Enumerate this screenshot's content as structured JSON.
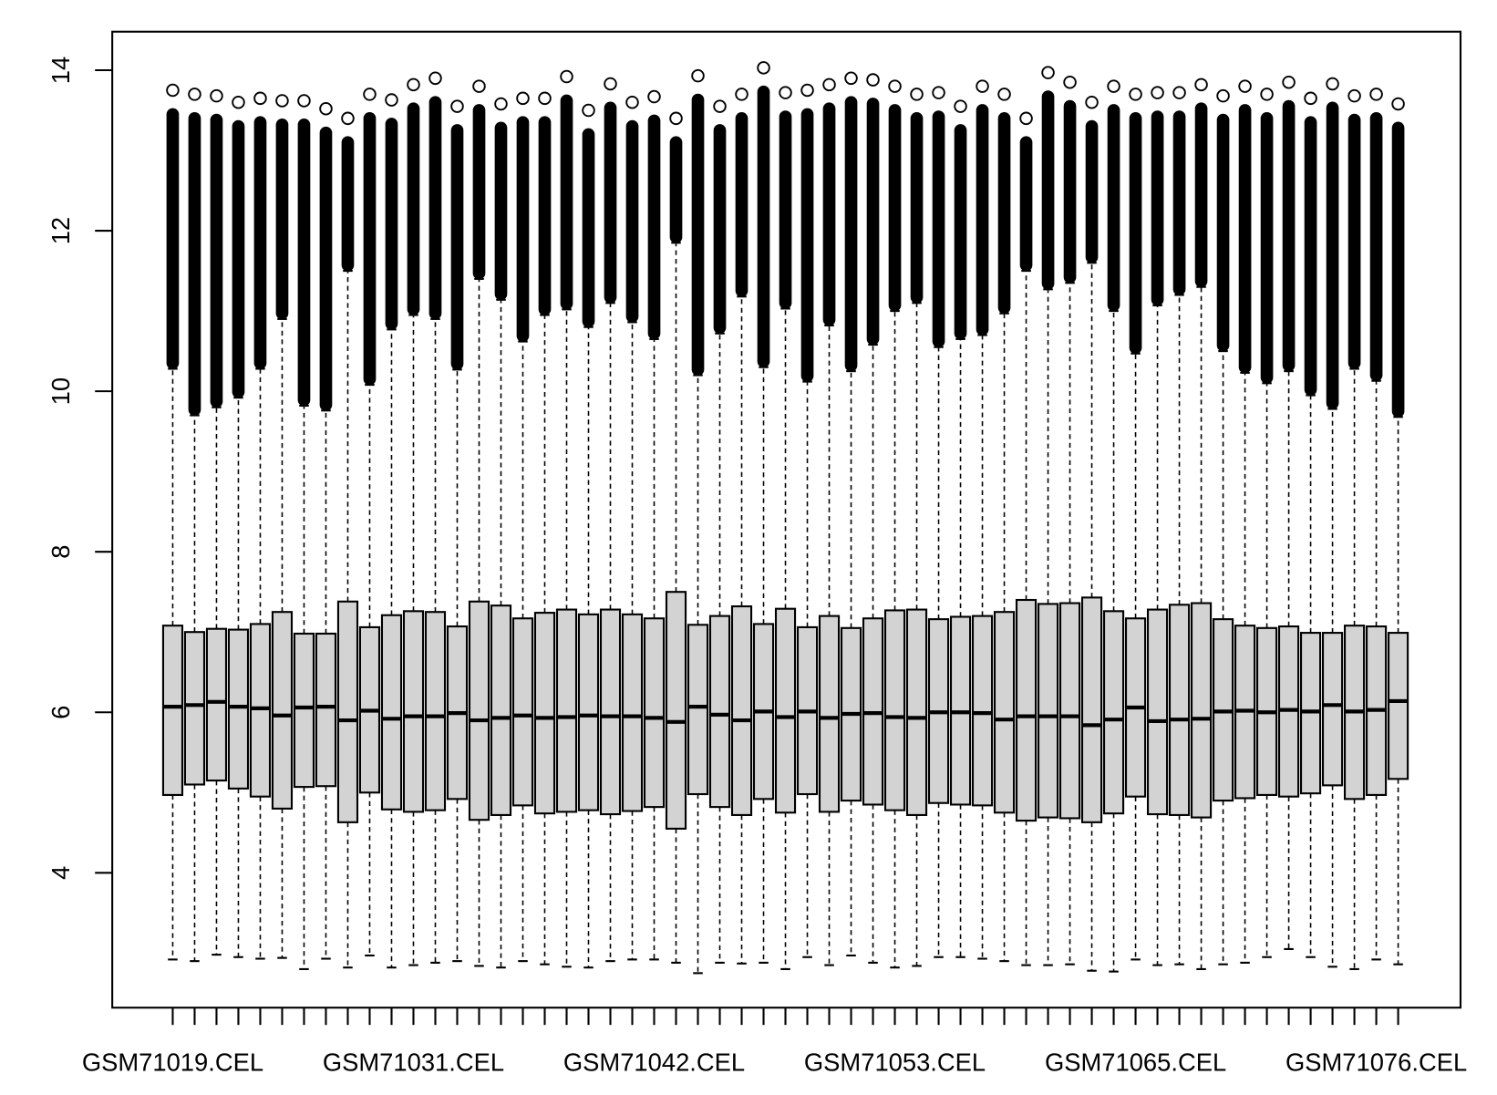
{
  "chart_data": {
    "type": "boxplot",
    "categories": [
      "GSM71019.CEL",
      null,
      null,
      null,
      null,
      null,
      null,
      null,
      null,
      null,
      null,
      "GSM71031.CEL",
      null,
      null,
      null,
      null,
      null,
      null,
      null,
      null,
      null,
      null,
      "GSM71042.CEL",
      null,
      null,
      null,
      null,
      null,
      null,
      null,
      null,
      null,
      null,
      "GSM71053.CEL",
      null,
      null,
      null,
      null,
      null,
      null,
      null,
      null,
      null,
      null,
      "GSM71065.CEL",
      null,
      null,
      null,
      null,
      null,
      null,
      null,
      null,
      null,
      null,
      "GSM71076.CEL",
      null
    ],
    "whisker_low": [
      2.92,
      2.9,
      2.98,
      2.95,
      2.93,
      2.94,
      2.8,
      2.93,
      2.82,
      2.97,
      2.82,
      2.85,
      2.88,
      2.9,
      2.84,
      2.82,
      2.9,
      2.86,
      2.83,
      2.82,
      2.9,
      2.92,
      2.92,
      2.88,
      2.75,
      2.88,
      2.87,
      2.88,
      2.8,
      2.95,
      2.85,
      2.97,
      2.88,
      2.82,
      2.84,
      2.95,
      2.95,
      2.93,
      2.9,
      2.85,
      2.85,
      2.86,
      2.78,
      2.77,
      2.92,
      2.85,
      2.86,
      2.8,
      2.86,
      2.88,
      2.95,
      3.05,
      2.95,
      2.83,
      2.8,
      2.92,
      2.86
    ],
    "q1": [
      4.97,
      5.1,
      5.15,
      5.05,
      4.95,
      4.8,
      5.07,
      5.08,
      4.63,
      5.0,
      4.79,
      4.76,
      4.78,
      4.92,
      4.66,
      4.72,
      4.84,
      4.74,
      4.76,
      4.78,
      4.73,
      4.77,
      4.82,
      4.55,
      4.98,
      4.82,
      4.72,
      4.92,
      4.75,
      4.98,
      4.76,
      4.9,
      4.85,
      4.78,
      4.72,
      4.87,
      4.85,
      4.84,
      4.75,
      4.65,
      4.69,
      4.68,
      4.63,
      4.74,
      4.95,
      4.73,
      4.72,
      4.69,
      4.9,
      4.93,
      4.97,
      4.95,
      4.99,
      5.09,
      4.92,
      4.97,
      5.17
    ],
    "median": [
      6.07,
      6.09,
      6.13,
      6.07,
      6.05,
      5.96,
      6.06,
      6.07,
      5.9,
      6.02,
      5.92,
      5.95,
      5.95,
      5.99,
      5.9,
      5.93,
      5.96,
      5.93,
      5.94,
      5.96,
      5.95,
      5.95,
      5.93,
      5.88,
      6.07,
      5.97,
      5.9,
      6.01,
      5.94,
      6.01,
      5.93,
      5.98,
      5.99,
      5.94,
      5.93,
      6.0,
      6.0,
      5.99,
      5.91,
      5.95,
      5.95,
      5.95,
      5.84,
      5.91,
      6.06,
      5.89,
      5.91,
      5.92,
      6.01,
      6.02,
      6.0,
      6.03,
      6.01,
      6.09,
      6.01,
      6.03,
      6.14
    ],
    "q3": [
      7.08,
      7.0,
      7.04,
      7.03,
      7.1,
      7.25,
      6.98,
      6.98,
      7.38,
      7.06,
      7.21,
      7.26,
      7.25,
      7.07,
      7.38,
      7.33,
      7.17,
      7.24,
      7.28,
      7.22,
      7.28,
      7.22,
      7.17,
      7.5,
      7.09,
      7.2,
      7.32,
      7.1,
      7.29,
      7.06,
      7.2,
      7.05,
      7.17,
      7.27,
      7.28,
      7.16,
      7.19,
      7.2,
      7.25,
      7.4,
      7.35,
      7.36,
      7.43,
      7.26,
      7.17,
      7.28,
      7.34,
      7.36,
      7.16,
      7.08,
      7.05,
      7.07,
      6.99,
      6.99,
      7.08,
      7.07,
      6.99
    ],
    "whisker_high": [
      10.28,
      9.7,
      9.8,
      9.92,
      10.28,
      10.9,
      9.82,
      9.76,
      11.5,
      10.08,
      10.77,
      10.95,
      10.9,
      10.27,
      11.4,
      11.14,
      10.62,
      10.95,
      11.02,
      10.8,
      11.1,
      10.86,
      10.65,
      11.85,
      10.2,
      10.72,
      11.18,
      10.3,
      11.03,
      10.12,
      10.82,
      10.25,
      10.58,
      11.0,
      11.1,
      10.55,
      10.65,
      10.7,
      10.97,
      11.5,
      11.27,
      11.35,
      11.6,
      11.0,
      10.47,
      11.07,
      11.2,
      11.3,
      10.5,
      10.23,
      10.1,
      10.25,
      9.95,
      9.78,
      10.28,
      10.13,
      9.68
    ],
    "outlier_band_top": [
      13.45,
      13.4,
      13.38,
      13.3,
      13.35,
      13.32,
      13.32,
      13.22,
      13.1,
      13.4,
      13.33,
      13.52,
      13.6,
      13.25,
      13.5,
      13.28,
      13.35,
      13.35,
      13.62,
      13.2,
      13.53,
      13.3,
      13.37,
      13.1,
      13.63,
      13.25,
      13.4,
      13.73,
      13.42,
      13.45,
      13.52,
      13.6,
      13.58,
      13.5,
      13.4,
      13.42,
      13.25,
      13.5,
      13.4,
      13.1,
      13.67,
      13.55,
      13.3,
      13.5,
      13.4,
      13.42,
      13.42,
      13.52,
      13.38,
      13.5,
      13.4,
      13.55,
      13.35,
      13.53,
      13.38,
      13.4,
      13.28
    ],
    "outlier_max": [
      13.75,
      13.7,
      13.68,
      13.6,
      13.65,
      13.62,
      13.62,
      13.52,
      13.4,
      13.7,
      13.63,
      13.82,
      13.9,
      13.55,
      13.8,
      13.58,
      13.65,
      13.65,
      13.92,
      13.5,
      13.83,
      13.6,
      13.67,
      13.4,
      13.93,
      13.55,
      13.7,
      14.03,
      13.72,
      13.75,
      13.82,
      13.9,
      13.88,
      13.8,
      13.7,
      13.72,
      13.55,
      13.8,
      13.7,
      13.4,
      13.97,
      13.85,
      13.6,
      13.8,
      13.7,
      13.72,
      13.72,
      13.82,
      13.68,
      13.8,
      13.7,
      13.85,
      13.65,
      13.83,
      13.68,
      13.7,
      13.58
    ],
    "box_color": "#d3d3d3",
    "ylim": [
      2.32,
      14.48
    ],
    "yticks": [
      4,
      6,
      8,
      10,
      12,
      14
    ]
  }
}
